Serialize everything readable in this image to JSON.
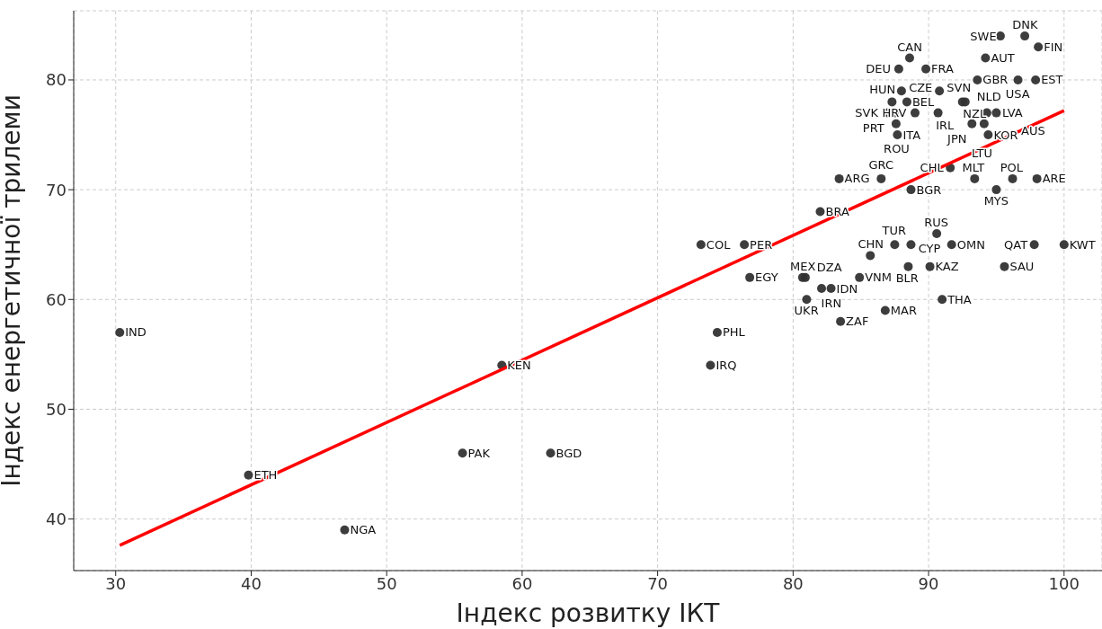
{
  "chart_data": {
    "type": "scatter",
    "xlabel": "Індекс розвитку ІКТ",
    "ylabel": "Індекс енергетичної трилеми",
    "xlim": [
      26.9,
      102.8
    ],
    "ylim": [
      35.3,
      86.3
    ],
    "xticks": [
      30,
      40,
      50,
      60,
      70,
      80,
      90,
      100
    ],
    "yticks": [
      40,
      50,
      60,
      70,
      80
    ],
    "grid": true,
    "marker": "circle",
    "series": [
      {
        "color": "#333333",
        "x": [
          30.3,
          39.8,
          46.9,
          55.6,
          58.5,
          62.1,
          73.9,
          74.4,
          73.2,
          76.4,
          76.8,
          83.4,
          82.0,
          81.0,
          80.7,
          80.9,
          82.1,
          82.8,
          84.9,
          83.5,
          85.7,
          86.8,
          87.5,
          88.7,
          90.6,
          91.7,
          88.5,
          90.1,
          91.0,
          95.6,
          97.8,
          100,
          86.5,
          88.7,
          91.6,
          93.4,
          95.0,
          96.2,
          98.0,
          87.7,
          94.4,
          88.6,
          87.8,
          89.8,
          95.3,
          97.1,
          98.1,
          94.2,
          93.6,
          96.6,
          97.9,
          88.0,
          90.8,
          87.3,
          88.4,
          87.0,
          87.5,
          89.0,
          90.7,
          87.6,
          92.5,
          92.7,
          94.3,
          95.0,
          93.2,
          94.1
        ],
        "values": [
          57,
          44,
          39,
          46,
          54,
          46,
          54,
          57,
          65,
          65,
          62,
          71,
          68,
          60,
          62,
          62,
          61,
          61,
          62,
          58,
          64,
          59,
          65,
          65,
          66,
          65,
          63,
          63,
          60,
          63,
          65,
          65,
          71,
          70,
          72,
          71,
          70,
          71,
          71,
          75,
          75,
          82,
          81,
          81,
          84,
          84,
          83,
          82,
          80,
          80,
          80,
          79,
          79,
          78,
          78,
          77,
          77,
          77,
          77,
          76,
          78,
          78,
          77,
          77,
          76,
          76
        ]
      },
      {
        "type": "line",
        "marker": "none",
        "color": "#ff0000",
        "x": [
          30.3,
          100
        ],
        "values": [
          37.6,
          77.2
        ]
      }
    ],
    "annotations": [
      {
        "text": "IND",
        "x": 30.3,
        "y": 57
      },
      {
        "text": "ETH",
        "x": 39.8,
        "y": 44
      },
      {
        "text": "NGA",
        "x": 46.9,
        "y": 39
      },
      {
        "text": "PAK",
        "x": 55.6,
        "y": 46
      },
      {
        "text": "KEN",
        "x": 58.5,
        "y": 54
      },
      {
        "text": "BGD",
        "x": 62.1,
        "y": 46
      },
      {
        "text": "IRQ",
        "x": 73.9,
        "y": 54
      },
      {
        "text": "PHL",
        "x": 74.4,
        "y": 57
      },
      {
        "text": "COL",
        "x": 73.2,
        "y": 65
      },
      {
        "text": "PER",
        "x": 76.4,
        "y": 65
      },
      {
        "text": "EGY",
        "x": 76.8,
        "y": 62
      },
      {
        "text": "ARG",
        "x": 83.4,
        "y": 71
      },
      {
        "text": "BRA",
        "x": 82.0,
        "y": 68
      },
      {
        "text": "UKR",
        "x": 81.0,
        "y": 60
      },
      {
        "text": "MEX",
        "x": 80.7,
        "y": 62
      },
      {
        "text": "DZA",
        "x": 80.9,
        "y": 62
      },
      {
        "text": "IRN",
        "x": 82.1,
        "y": 61
      },
      {
        "text": "IDN",
        "x": 82.8,
        "y": 61
      },
      {
        "text": "VNM",
        "x": 84.9,
        "y": 62
      },
      {
        "text": "ZAF",
        "x": 83.5,
        "y": 58
      },
      {
        "text": "CHN",
        "x": 85.7,
        "y": 64
      },
      {
        "text": "MAR",
        "x": 86.8,
        "y": 59
      },
      {
        "text": "TUR",
        "x": 87.5,
        "y": 65
      },
      {
        "text": "CYP",
        "x": 88.7,
        "y": 65
      },
      {
        "text": "RUS",
        "x": 90.6,
        "y": 66
      },
      {
        "text": "OMN",
        "x": 91.7,
        "y": 65
      },
      {
        "text": "BLR",
        "x": 88.5,
        "y": 63
      },
      {
        "text": "KAZ",
        "x": 90.1,
        "y": 63
      },
      {
        "text": "THA",
        "x": 91.0,
        "y": 60
      },
      {
        "text": "SAU",
        "x": 95.6,
        "y": 63
      },
      {
        "text": "QAT",
        "x": 97.8,
        "y": 65
      },
      {
        "text": "KWT",
        "x": 100,
        "y": 65
      },
      {
        "text": "GRC",
        "x": 86.5,
        "y": 71
      },
      {
        "text": "BGR",
        "x": 88.7,
        "y": 70
      },
      {
        "text": "CHL",
        "x": 91.6,
        "y": 72
      },
      {
        "text": "MLT",
        "x": 93.4,
        "y": 71
      },
      {
        "text": "MYS",
        "x": 95.0,
        "y": 70
      },
      {
        "text": "POL",
        "x": 96.2,
        "y": 71
      },
      {
        "text": "ARE",
        "x": 98.0,
        "y": 71
      },
      {
        "text": "ITA",
        "x": 87.7,
        "y": 75
      },
      {
        "text": "KOR",
        "x": 94.4,
        "y": 75
      },
      {
        "text": "CAN",
        "x": 88.6,
        "y": 82
      },
      {
        "text": "DEU",
        "x": 87.8,
        "y": 81
      },
      {
        "text": "FRA",
        "x": 89.8,
        "y": 81
      },
      {
        "text": "SWE",
        "x": 95.3,
        "y": 84
      },
      {
        "text": "DNK",
        "x": 97.1,
        "y": 84
      },
      {
        "text": "FIN",
        "x": 98.1,
        "y": 83
      },
      {
        "text": "AUT",
        "x": 94.2,
        "y": 82
      },
      {
        "text": "GBR",
        "x": 93.6,
        "y": 80
      },
      {
        "text": "USA",
        "x": 96.6,
        "y": 80
      },
      {
        "text": "EST",
        "x": 97.9,
        "y": 80
      },
      {
        "text": "CZE",
        "x": 88.0,
        "y": 79
      },
      {
        "text": "SVN",
        "x": 90.8,
        "y": 79
      },
      {
        "text": "HUN",
        "x": 87.3,
        "y": 78
      },
      {
        "text": "BEL",
        "x": 88.4,
        "y": 78
      },
      {
        "text": "SVK",
        "x": 87.0,
        "y": 77
      },
      {
        "text": "PRT",
        "x": 87.5,
        "y": 77
      },
      {
        "text": "HRV",
        "x": 89.0,
        "y": 77
      },
      {
        "text": "IRL",
        "x": 90.7,
        "y": 77
      },
      {
        "text": "ROU",
        "x": 87.6,
        "y": 76
      },
      {
        "text": "NLD",
        "x": 92.5,
        "y": 78
      },
      {
        "text": "NZL",
        "x": 92.7,
        "y": 78
      },
      {
        "text": "LVA",
        "x": 94.3,
        "y": 77
      },
      {
        "text": "AUS",
        "x": 95.0,
        "y": 77
      },
      {
        "text": "JPN",
        "x": 93.2,
        "y": 76
      },
      {
        "text": "LTU",
        "x": 94.1,
        "y": 76
      }
    ]
  }
}
